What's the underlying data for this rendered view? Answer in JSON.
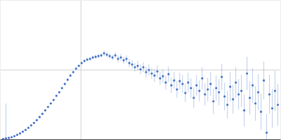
{
  "chart_data": {
    "type": "scatter",
    "color": "#4472c4",
    "marker": "circle",
    "grid": true,
    "tick_labels": false,
    "xlim": [
      0,
      0.4
    ],
    "ylim": [
      0,
      2
    ],
    "xticks": [
      0.115
    ],
    "yticks": [
      1
    ],
    "x": [
      0.004,
      0.008,
      0.012,
      0.016,
      0.02,
      0.024,
      0.028,
      0.032,
      0.036,
      0.04,
      0.044,
      0.048,
      0.052,
      0.056,
      0.06,
      0.064,
      0.068,
      0.072,
      0.076,
      0.08,
      0.084,
      0.088,
      0.092,
      0.096,
      0.1,
      0.104,
      0.108,
      0.112,
      0.116,
      0.12,
      0.124,
      0.128,
      0.132,
      0.136,
      0.14,
      0.144,
      0.148,
      0.152,
      0.156,
      0.16,
      0.164,
      0.168,
      0.172,
      0.176,
      0.18,
      0.184,
      0.188,
      0.192,
      0.196,
      0.2,
      0.204,
      0.208,
      0.212,
      0.216,
      0.22,
      0.224,
      0.228,
      0.232,
      0.236,
      0.24,
      0.244,
      0.248,
      0.252,
      0.256,
      0.26,
      0.264,
      0.268,
      0.272,
      0.276,
      0.28,
      0.284,
      0.288,
      0.292,
      0.296,
      0.3,
      0.304,
      0.308,
      0.312,
      0.316,
      0.32,
      0.324,
      0.328,
      0.332,
      0.336,
      0.34,
      0.344,
      0.348,
      0.352,
      0.356,
      0.36,
      0.364,
      0.368,
      0.372,
      0.376,
      0.38,
      0.384,
      0.388,
      0.392,
      0.396
    ],
    "values": [
      0.01,
      0.02,
      0.025,
      0.035,
      0.05,
      0.07,
      0.09,
      0.115,
      0.14,
      0.17,
      0.205,
      0.24,
      0.28,
      0.325,
      0.37,
      0.42,
      0.47,
      0.52,
      0.57,
      0.63,
      0.68,
      0.74,
      0.8,
      0.86,
      0.92,
      0.97,
      1.02,
      1.06,
      1.1,
      1.13,
      1.15,
      1.16,
      1.18,
      1.19,
      1.2,
      1.21,
      1.24,
      1.22,
      1.2,
      1.18,
      1.21,
      1.16,
      1.18,
      1.14,
      1.16,
      1.1,
      1.08,
      1.04,
      1.06,
      1.01,
      1.04,
      0.97,
      1.0,
      0.95,
      0.92,
      0.98,
      0.88,
      0.91,
      0.82,
      0.94,
      0.78,
      0.85,
      0.72,
      0.84,
      0.8,
      0.67,
      0.82,
      0.74,
      0.6,
      0.78,
      0.7,
      0.88,
      0.65,
      0.72,
      0.8,
      0.55,
      0.74,
      0.68,
      0.9,
      0.62,
      0.5,
      0.76,
      0.58,
      0.82,
      0.65,
      0.7,
      0.42,
      0.95,
      0.6,
      0.78,
      0.52,
      0.68,
      0.4,
      0.85,
      0.1,
      0.65,
      0.45,
      0.7,
      0.5
    ],
    "errors": [
      0.01,
      0.5,
      0.02,
      0.01,
      0.01,
      0.01,
      0.01,
      0.01,
      0.01,
      0.01,
      0.01,
      0.01,
      0.01,
      0.01,
      0.01,
      0.01,
      0.01,
      0.01,
      0.01,
      0.01,
      0.01,
      0.01,
      0.015,
      0.015,
      0.015,
      0.02,
      0.02,
      0.02,
      0.02,
      0.02,
      0.02,
      0.03,
      0.03,
      0.03,
      0.03,
      0.03,
      0.04,
      0.04,
      0.04,
      0.04,
      0.04,
      0.05,
      0.05,
      0.05,
      0.05,
      0.06,
      0.06,
      0.06,
      0.07,
      0.07,
      0.07,
      0.08,
      0.08,
      0.08,
      0.09,
      0.09,
      0.1,
      0.1,
      0.1,
      0.11,
      0.11,
      0.12,
      0.12,
      0.12,
      0.13,
      0.13,
      0.14,
      0.14,
      0.15,
      0.15,
      0.15,
      0.16,
      0.16,
      0.17,
      0.17,
      0.18,
      0.18,
      0.19,
      0.19,
      0.2,
      0.2,
      0.21,
      0.21,
      0.22,
      0.22,
      0.23,
      0.23,
      0.24,
      0.24,
      0.25,
      0.25,
      0.26,
      0.26,
      0.27,
      0.27,
      0.28,
      0.28,
      0.29,
      0.3
    ]
  }
}
